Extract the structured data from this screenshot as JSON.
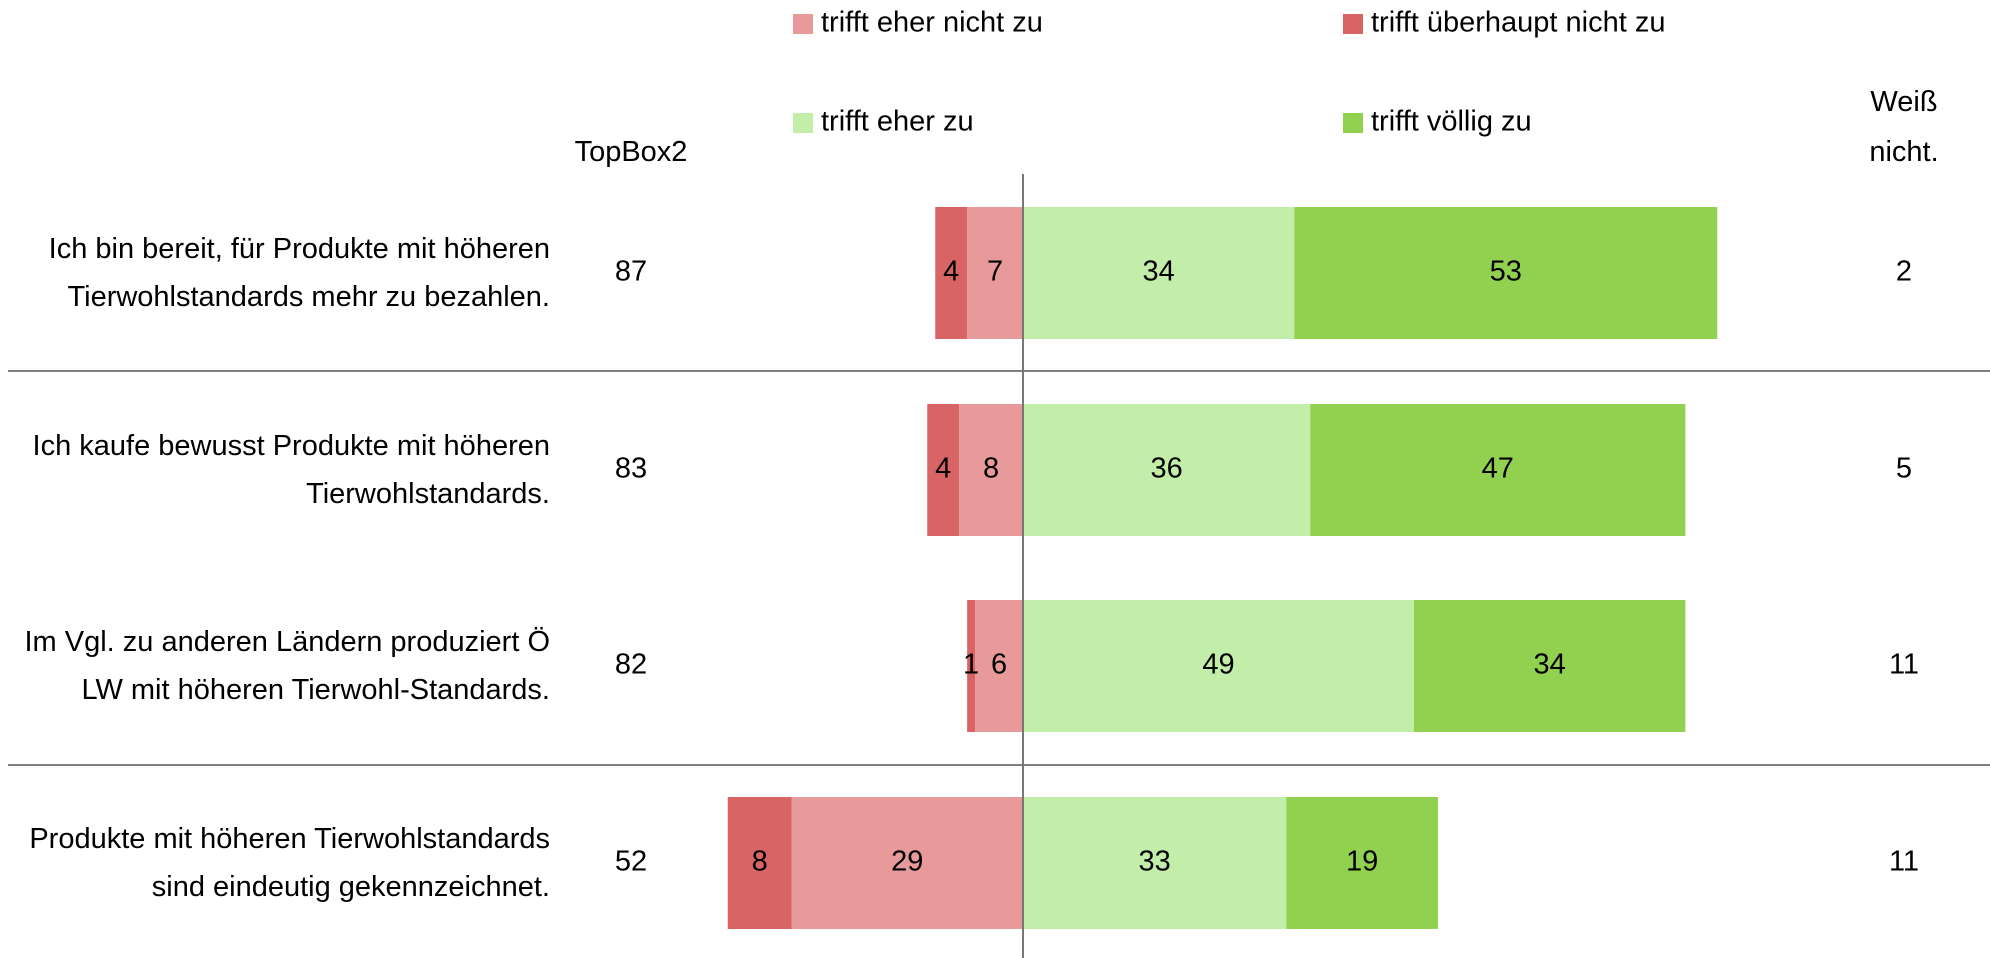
{
  "chart_data": {
    "type": "diverging-bar",
    "categories": [
      "Ich bin bereit, für Produkte mit höheren Tierwohlstandards mehr zu bezahlen.",
      "Ich kaufe bewusst Produkte mit höheren Tierwohlstandards.",
      "Im Vgl. zu anderen Ländern produziert Ö LW mit höheren Tierwohl-Standards.",
      "Produkte mit höheren Tierwohlstandards sind eindeutig gekennzeichnet."
    ],
    "series": [
      {
        "name": "trifft eher nicht zu",
        "color": "#e89a9b",
        "values": [
          7,
          8,
          6,
          29
        ]
      },
      {
        "name": "trifft überhaupt nicht zu",
        "color": "#d96466",
        "values": [
          4,
          4,
          1,
          8
        ]
      },
      {
        "name": "trifft eher zu",
        "color": "#c2eeaa",
        "values": [
          34,
          36,
          49,
          33
        ]
      },
      {
        "name": "trifft völlig zu",
        "color": "#92d050",
        "values": [
          53,
          47,
          34,
          19
        ]
      }
    ],
    "columns": [
      {
        "name": "TopBox2",
        "values": [
          87,
          83,
          82,
          52
        ]
      },
      {
        "name": "Weiß nicht.",
        "values": [
          2,
          5,
          11,
          11
        ]
      }
    ]
  }
}
